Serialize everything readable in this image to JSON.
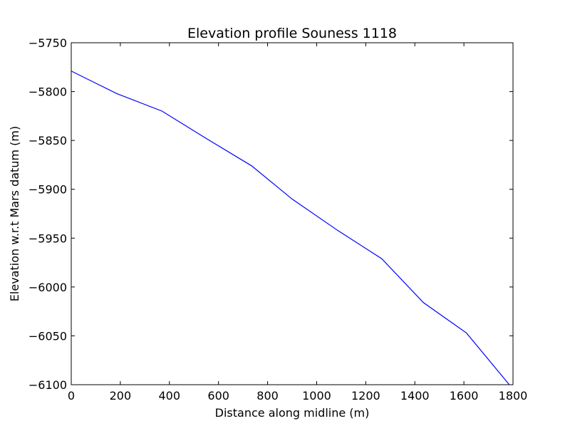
{
  "chart_data": {
    "type": "line",
    "title": "Elevation profile Souness 1118",
    "xlabel": "Distance along midline (m)",
    "ylabel": "Elevation w.r.t Mars datum (m)",
    "xlim": [
      0,
      1800
    ],
    "ylim": [
      -6100,
      -5750
    ],
    "xticks": [
      0,
      200,
      400,
      600,
      800,
      1000,
      1200,
      1400,
      1600,
      1800
    ],
    "yticks": [
      -5750,
      -5800,
      -5850,
      -5900,
      -5950,
      -6000,
      -6050,
      -6100
    ],
    "grid": false,
    "series": [
      {
        "color": "#0000ff",
        "x": [
          0,
          185,
          370,
          550,
          735,
          900,
          1085,
          1265,
          1435,
          1610,
          1785
        ],
        "y": [
          -5779,
          -5802,
          -5820,
          -5848,
          -5876,
          -5910,
          -5942,
          -5971,
          -6016,
          -6047,
          -6100
        ]
      }
    ]
  }
}
